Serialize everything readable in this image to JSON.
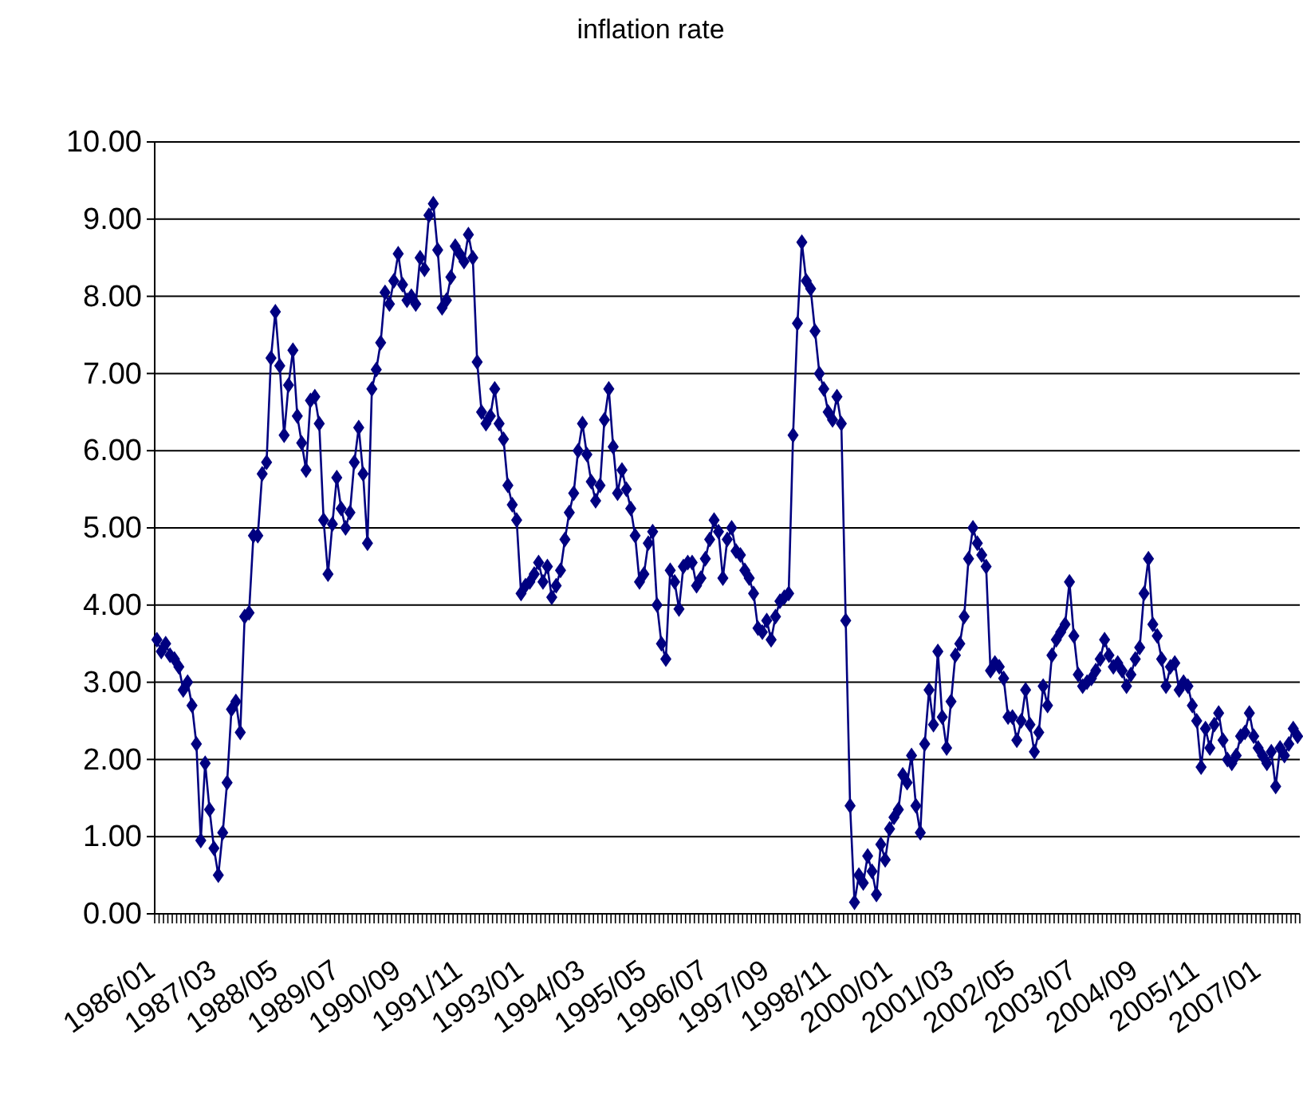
{
  "chart_data": {
    "type": "line",
    "title": "inflation rate",
    "categories": [
      "1986/01",
      null,
      null,
      null,
      null,
      null,
      null,
      null,
      null,
      null,
      null,
      null,
      null,
      null,
      "1987/03",
      null,
      null,
      null,
      null,
      null,
      null,
      null,
      null,
      null,
      null,
      null,
      null,
      null,
      "1988/05",
      null,
      null,
      null,
      null,
      null,
      null,
      null,
      null,
      null,
      null,
      null,
      null,
      null,
      "1989/07",
      null,
      null,
      null,
      null,
      null,
      null,
      null,
      null,
      null,
      null,
      null,
      null,
      null,
      "1990/09",
      null,
      null,
      null,
      null,
      null,
      null,
      null,
      null,
      null,
      null,
      null,
      null,
      null,
      "1991/11",
      null,
      null,
      null,
      null,
      null,
      null,
      null,
      null,
      null,
      null,
      null,
      null,
      null,
      "1993/01",
      null,
      null,
      null,
      null,
      null,
      null,
      null,
      null,
      null,
      null,
      null,
      null,
      null,
      "1994/03",
      null,
      null,
      null,
      null,
      null,
      null,
      null,
      null,
      null,
      null,
      null,
      null,
      null,
      "1995/05",
      null,
      null,
      null,
      null,
      null,
      null,
      null,
      null,
      null,
      null,
      null,
      null,
      null,
      "1996/07",
      null,
      null,
      null,
      null,
      null,
      null,
      null,
      null,
      null,
      null,
      null,
      null,
      null,
      "1997/09",
      null,
      null,
      null,
      null,
      null,
      null,
      null,
      null,
      null,
      null,
      null,
      null,
      null,
      "1998/11",
      null,
      null,
      null,
      null,
      null,
      null,
      null,
      null,
      null,
      null,
      null,
      null,
      null,
      "2000/01",
      null,
      null,
      null,
      null,
      null,
      null,
      null,
      null,
      null,
      null,
      null,
      null,
      null,
      "2001/03",
      null,
      null,
      null,
      null,
      null,
      null,
      null,
      null,
      null,
      null,
      null,
      null,
      null,
      "2002/05",
      null,
      null,
      null,
      null,
      null,
      null,
      null,
      null,
      null,
      null,
      null,
      null,
      null,
      "2003/07",
      null,
      null,
      null,
      null,
      null,
      null,
      null,
      null,
      null,
      null,
      null,
      null,
      null,
      "2004/09",
      null,
      null,
      null,
      null,
      null,
      null,
      null,
      null,
      null,
      null,
      null,
      null,
      null,
      "2005/11",
      null,
      null,
      null,
      null,
      null,
      null,
      null,
      null,
      null,
      null,
      null,
      null,
      null,
      "2007/01",
      null,
      null,
      null,
      null,
      null,
      null,
      null,
      null
    ],
    "series": [
      {
        "color": "#000080",
        "values": [
          3.55,
          3.4,
          3.5,
          3.35,
          3.3,
          3.2,
          2.9,
          3.0,
          2.7,
          2.2,
          0.95,
          1.95,
          1.35,
          0.85,
          0.5,
          1.05,
          1.7,
          2.65,
          2.75,
          2.35,
          3.85,
          3.9,
          4.9,
          4.9,
          5.7,
          5.85,
          7.2,
          7.8,
          7.1,
          6.2,
          6.85,
          7.3,
          6.45,
          6.1,
          5.75,
          6.65,
          6.7,
          6.35,
          5.1,
          4.4,
          5.05,
          5.65,
          5.25,
          5.0,
          5.2,
          5.85,
          6.3,
          5.7,
          4.8,
          6.8,
          7.05,
          7.4,
          8.05,
          7.9,
          8.2,
          8.55,
          8.15,
          7.95,
          8.0,
          7.9,
          8.5,
          8.35,
          9.05,
          9.2,
          8.6,
          7.85,
          7.95,
          8.25,
          8.65,
          8.55,
          8.45,
          8.8,
          8.5,
          7.15,
          6.5,
          6.35,
          6.45,
          6.8,
          6.35,
          6.15,
          5.55,
          5.3,
          5.1,
          4.15,
          4.25,
          4.3,
          4.4,
          4.55,
          4.3,
          4.5,
          4.1,
          4.25,
          4.45,
          4.85,
          5.2,
          5.45,
          6.0,
          6.35,
          5.95,
          5.6,
          5.35,
          5.55,
          6.4,
          6.8,
          6.05,
          5.45,
          5.75,
          5.5,
          5.25,
          4.9,
          4.3,
          4.4,
          4.8,
          4.95,
          4.0,
          3.5,
          3.3,
          4.45,
          4.3,
          3.95,
          4.5,
          4.55,
          4.55,
          4.25,
          4.35,
          4.6,
          4.85,
          5.1,
          4.95,
          4.35,
          4.85,
          5.0,
          4.7,
          4.65,
          4.45,
          4.35,
          4.15,
          3.7,
          3.65,
          3.8,
          3.55,
          3.85,
          4.05,
          4.1,
          4.15,
          6.2,
          7.65,
          8.7,
          8.2,
          8.1,
          7.55,
          7.0,
          6.8,
          6.5,
          6.4,
          6.7,
          6.35,
          3.8,
          1.4,
          0.15,
          0.5,
          0.4,
          0.75,
          0.55,
          0.25,
          0.9,
          0.7,
          1.1,
          1.25,
          1.35,
          1.8,
          1.7,
          2.05,
          1.4,
          1.05,
          2.2,
          2.9,
          2.45,
          3.4,
          2.55,
          2.15,
          2.75,
          3.35,
          3.5,
          3.85,
          4.6,
          5.0,
          4.8,
          4.65,
          4.5,
          3.15,
          3.25,
          3.2,
          3.05,
          2.55,
          2.55,
          2.25,
          2.5,
          2.9,
          2.45,
          2.1,
          2.35,
          2.95,
          2.7,
          3.35,
          3.55,
          3.65,
          3.75,
          4.3,
          3.6,
          3.1,
          2.95,
          3.0,
          3.05,
          3.15,
          3.3,
          3.55,
          3.35,
          3.2,
          3.25,
          3.15,
          2.95,
          3.1,
          3.3,
          3.45,
          4.15,
          4.6,
          3.75,
          3.6,
          3.3,
          2.95,
          3.2,
          3.25,
          2.9,
          3.0,
          2.95,
          2.7,
          2.5,
          1.9,
          2.4,
          2.15,
          2.45,
          2.6,
          2.25,
          2.0,
          1.95,
          2.05,
          2.3,
          2.35,
          2.6,
          2.3,
          2.15,
          2.05,
          1.95,
          2.1,
          1.65,
          2.15,
          2.05,
          2.2,
          2.4,
          2.3
        ]
      }
    ],
    "ylim": [
      0,
      10
    ],
    "yticks": [
      {
        "value": 0,
        "label": "0.00"
      },
      {
        "value": 1,
        "label": "1.00"
      },
      {
        "value": 2,
        "label": "2.00"
      },
      {
        "value": 3,
        "label": "3.00"
      },
      {
        "value": 4,
        "label": "4.00"
      },
      {
        "value": 5,
        "label": "5.00"
      },
      {
        "value": 6,
        "label": "6.00"
      },
      {
        "value": 7,
        "label": "7.00"
      },
      {
        "value": 8,
        "label": "8.00"
      },
      {
        "value": 9,
        "label": "9.00"
      },
      {
        "value": 10,
        "label": "10.00"
      }
    ],
    "grid": "y",
    "marker": "diamond",
    "line_style": "solid"
  }
}
